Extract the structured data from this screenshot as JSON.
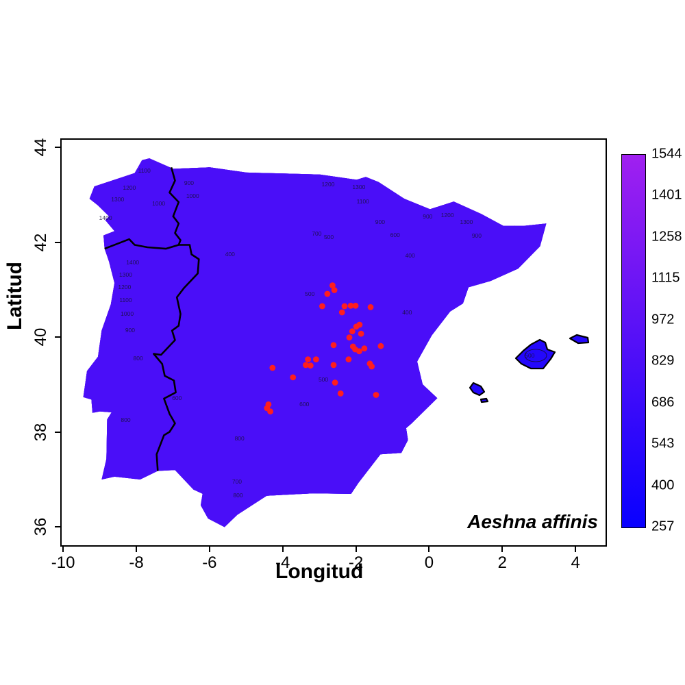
{
  "figure": {
    "species_label": "Aeshna affinis",
    "x_axis": {
      "label": "Longitud",
      "ticks": [
        -10,
        -8,
        -6,
        -4,
        -2,
        0,
        2,
        4
      ]
    },
    "y_axis": {
      "label": "Latitud",
      "ticks": [
        36,
        38,
        40,
        42,
        44
      ]
    }
  },
  "colorbar": {
    "tick_labels": [
      "1544",
      "1401",
      "1258",
      "1115",
      "972",
      "829",
      "686",
      "543",
      "400",
      "257"
    ],
    "value_min": 257,
    "value_max": 1544,
    "color_low": "#0800FF",
    "color_high": "#A020F0"
  },
  "colors": {
    "occurrence_point": "#FF1E1E",
    "contour_line": "#150d33",
    "boundary_line": "#000000",
    "sea_background": "#FFFFFF"
  },
  "chart_data": {
    "type": "contour-map",
    "title": "Aeshna affinis",
    "xlabel": "Longitud",
    "ylabel": "Latitud",
    "xlim": [
      -10.04,
      4.82
    ],
    "ylim": [
      35.61,
      44.16
    ],
    "x_ticks": [
      -10,
      -8,
      -6,
      -4,
      -2,
      0,
      2,
      4
    ],
    "y_ticks": [
      36,
      38,
      40,
      42,
      44
    ],
    "colorbar_values": [
      1544,
      1401,
      1258,
      1115,
      972,
      829,
      686,
      543,
      400,
      257
    ],
    "color_scale": {
      "min": 257,
      "max": 1544,
      "low_color": "#0800FF",
      "high_color": "#A020F0"
    },
    "contour_labels": [
      {
        "v": "1100",
        "lon": -7.78,
        "lat": 43.51
      },
      {
        "v": "1200",
        "lon": -8.19,
        "lat": 43.15
      },
      {
        "v": "1300",
        "lon": -8.51,
        "lat": 42.91
      },
      {
        "v": "1400",
        "lon": -8.84,
        "lat": 42.52
      },
      {
        "v": "1000",
        "lon": -7.39,
        "lat": 42.82
      },
      {
        "v": "900",
        "lon": -6.56,
        "lat": 43.25
      },
      {
        "v": "1000",
        "lon": -6.46,
        "lat": 42.98
      },
      {
        "v": "1400",
        "lon": -8.1,
        "lat": 41.58
      },
      {
        "v": "1300",
        "lon": -8.29,
        "lat": 41.32
      },
      {
        "v": "1200",
        "lon": -8.32,
        "lat": 41.06
      },
      {
        "v": "1100",
        "lon": -8.29,
        "lat": 40.78
      },
      {
        "v": "1000",
        "lon": -8.25,
        "lat": 40.49
      },
      {
        "v": "900",
        "lon": -8.17,
        "lat": 40.15
      },
      {
        "v": "800",
        "lon": -7.95,
        "lat": 39.55
      },
      {
        "v": "1200",
        "lon": -2.76,
        "lat": 43.22
      },
      {
        "v": "1300",
        "lon": -1.92,
        "lat": 43.16
      },
      {
        "v": "1100",
        "lon": -1.81,
        "lat": 42.86
      },
      {
        "v": "900",
        "lon": -1.34,
        "lat": 42.43
      },
      {
        "v": "900",
        "lon": -0.04,
        "lat": 42.54
      },
      {
        "v": "1200",
        "lon": 0.5,
        "lat": 42.57
      },
      {
        "v": "1300",
        "lon": 1.02,
        "lat": 42.43
      },
      {
        "v": "900",
        "lon": 1.3,
        "lat": 42.14
      },
      {
        "v": "700",
        "lon": -3.07,
        "lat": 42.18
      },
      {
        "v": "500",
        "lon": -2.74,
        "lat": 42.11
      },
      {
        "v": "600",
        "lon": -0.93,
        "lat": 42.15
      },
      {
        "v": "400",
        "lon": -0.52,
        "lat": 41.72
      },
      {
        "v": "400",
        "lon": -5.44,
        "lat": 41.75
      },
      {
        "v": "500",
        "lon": -3.26,
        "lat": 40.91
      },
      {
        "v": "400",
        "lon": -0.6,
        "lat": 40.52
      },
      {
        "v": "500",
        "lon": -2.89,
        "lat": 39.11
      },
      {
        "v": "600",
        "lon": -3.41,
        "lat": 38.59
      },
      {
        "v": "600",
        "lon": -6.89,
        "lat": 38.72
      },
      {
        "v": "800",
        "lon": -8.29,
        "lat": 38.26
      },
      {
        "v": "800",
        "lon": -5.18,
        "lat": 37.86
      },
      {
        "v": "700",
        "lon": -5.25,
        "lat": 36.95
      },
      {
        "v": "800",
        "lon": -5.22,
        "lat": 36.66
      },
      {
        "v": "500",
        "lon": 2.75,
        "lat": 39.61
      }
    ],
    "occurrences_lonlat": [
      [
        -2.64,
        41.09
      ],
      [
        -2.59,
        40.99
      ],
      [
        -2.78,
        40.91
      ],
      [
        -2.92,
        40.65
      ],
      [
        -2.31,
        40.65
      ],
      [
        -2.14,
        40.66
      ],
      [
        -2.01,
        40.66
      ],
      [
        -1.6,
        40.63
      ],
      [
        -2.38,
        40.52
      ],
      [
        -1.9,
        40.26
      ],
      [
        -1.99,
        40.22
      ],
      [
        -2.1,
        40.12
      ],
      [
        -1.86,
        40.07
      ],
      [
        -2.18,
        39.99
      ],
      [
        -2.61,
        39.83
      ],
      [
        -1.32,
        39.81
      ],
      [
        -2.08,
        39.8
      ],
      [
        -2.02,
        39.74
      ],
      [
        -1.91,
        39.7
      ],
      [
        -1.77,
        39.76
      ],
      [
        -3.31,
        39.53
      ],
      [
        -3.09,
        39.53
      ],
      [
        -3.37,
        39.41
      ],
      [
        -3.24,
        39.4
      ],
      [
        -2.61,
        39.41
      ],
      [
        -2.2,
        39.53
      ],
      [
        -1.62,
        39.44
      ],
      [
        -1.57,
        39.38
      ],
      [
        -4.28,
        39.35
      ],
      [
        -3.72,
        39.15
      ],
      [
        -2.57,
        39.04
      ],
      [
        -2.42,
        38.81
      ],
      [
        -1.45,
        38.78
      ],
      [
        -4.39,
        38.58
      ],
      [
        -4.43,
        38.5
      ],
      [
        -4.34,
        38.43
      ]
    ]
  }
}
